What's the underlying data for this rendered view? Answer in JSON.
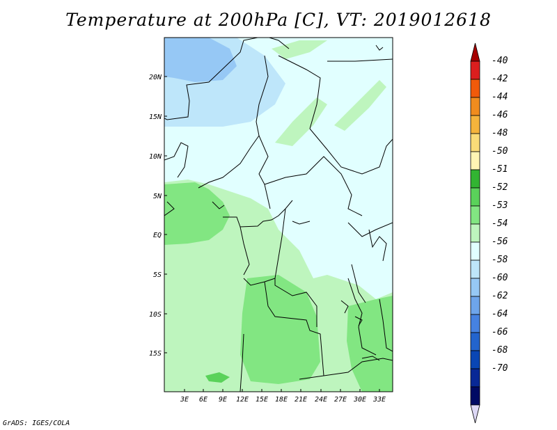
{
  "title": "Temperature at 200hPa [C], VT: 2019012618",
  "credit": "GrADS: IGES/COLA",
  "y_axis_labels": [
    "20N",
    "15N",
    "10N",
    "5N",
    "EQ",
    "5S",
    "10S",
    "15S"
  ],
  "x_axis_labels": [
    "3E",
    "6E",
    "9E",
    "12E",
    "15E",
    "18E",
    "21E",
    "24E",
    "27E",
    "30E",
    "33E"
  ],
  "colorbar": {
    "labels": [
      "-40",
      "-42",
      "-44",
      "-46",
      "-48",
      "-50",
      "-51",
      "-52",
      "-53",
      "-54",
      "-56",
      "-58",
      "-60",
      "-62",
      "-64",
      "-66",
      "-68",
      "-70"
    ],
    "colors": [
      "#a50000",
      "#dc1e1e",
      "#f05a0a",
      "#f08c1e",
      "#f5b43c",
      "#fadc78",
      "#fff5b4",
      "#32b432",
      "#5ad25a",
      "#82e682",
      "#bef5be",
      "#e1ffff",
      "#bee6fa",
      "#96c8f5",
      "#6ea5eb",
      "#4682e1",
      "#2364cd",
      "#0a46b4",
      "#082896",
      "#000a64",
      "#ddd8f5"
    ]
  },
  "legend_colors": {
    "sky_cold": "#96c8f5",
    "sky_light": "#bee6fa",
    "cyan_pale": "#e1ffff",
    "green_pale": "#bef5be",
    "green_light": "#82e682",
    "green_mid": "#5ad25a"
  }
}
